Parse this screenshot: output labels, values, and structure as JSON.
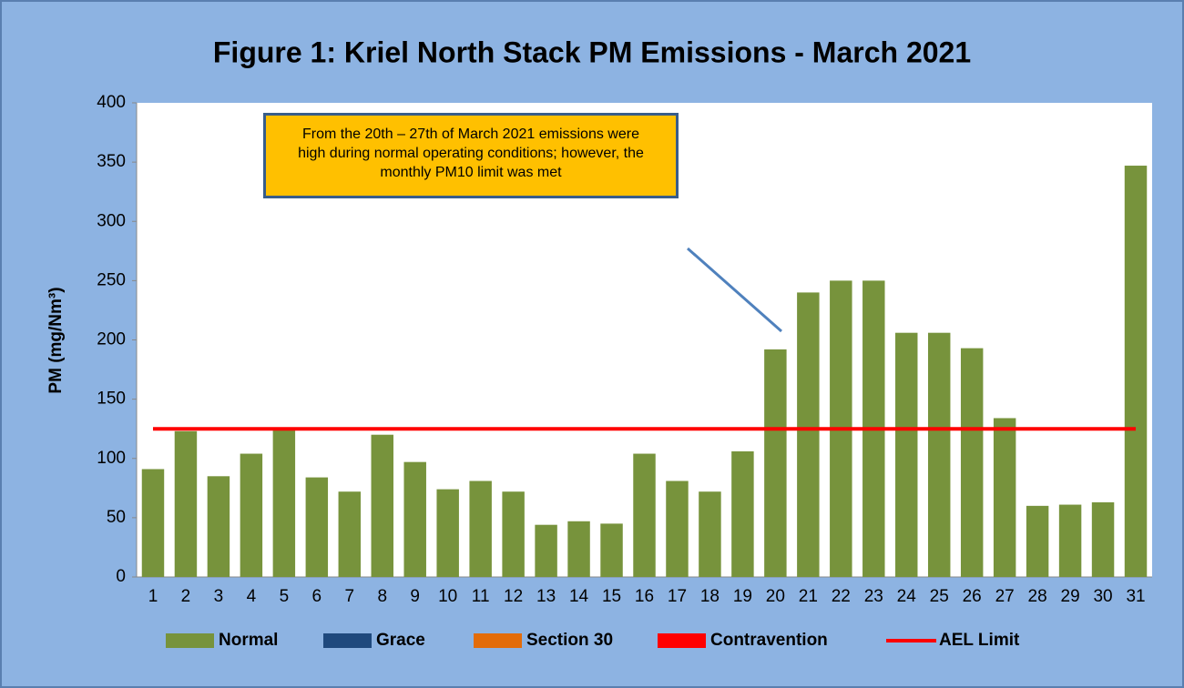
{
  "chart_data": {
    "type": "bar",
    "stacked": true,
    "title": "Figure 1: Kriel North Stack PM Emissions -  March 2021",
    "y_label": "PM (mg/Nm³)",
    "annotation": "From the 20th – 27th of March 2021 emissions were high during normal operating conditions; however, the monthly PM10 limit was met",
    "categories": [
      "1",
      "2",
      "3",
      "4",
      "5",
      "6",
      "7",
      "8",
      "9",
      "10",
      "11",
      "12",
      "13",
      "14",
      "15",
      "16",
      "17",
      "18",
      "19",
      "20",
      "21",
      "22",
      "23",
      "24",
      "25",
      "26",
      "27",
      "28",
      "29",
      "30",
      "31"
    ],
    "series": [
      {
        "name": "Normal",
        "color": "#77933c",
        "values": [
          91,
          123,
          85,
          104,
          125,
          84,
          72,
          120,
          97,
          74,
          81,
          72,
          44,
          47,
          45,
          104,
          81,
          72,
          106,
          192,
          240,
          250,
          250,
          206,
          206,
          193,
          134,
          60,
          61,
          63,
          347
        ]
      },
      {
        "name": "Grace",
        "color": "#1f497d",
        "values": [
          0,
          0,
          0,
          0,
          0,
          0,
          0,
          0,
          0,
          0,
          0,
          0,
          0,
          0,
          0,
          0,
          0,
          0,
          0,
          0,
          0,
          0,
          0,
          0,
          0,
          0,
          0,
          0,
          0,
          0,
          0
        ]
      },
      {
        "name": "Section 30",
        "color": "#e36c09",
        "values": [
          0,
          0,
          0,
          0,
          0,
          0,
          0,
          0,
          0,
          0,
          0,
          0,
          0,
          0,
          0,
          0,
          0,
          0,
          0,
          0,
          0,
          0,
          0,
          0,
          0,
          0,
          0,
          0,
          0,
          0,
          0
        ]
      },
      {
        "name": "Contravention",
        "color": "#ff0000",
        "values": [
          0,
          0,
          0,
          0,
          0,
          0,
          0,
          0,
          0,
          0,
          0,
          0,
          0,
          0,
          0,
          0,
          0,
          0,
          0,
          0,
          0,
          0,
          0,
          0,
          0,
          0,
          0,
          0,
          0,
          0,
          0
        ]
      },
      {
        "name": "AEL Limit",
        "type": "line",
        "color": "#ff0000",
        "values": [
          125,
          125,
          125,
          125,
          125,
          125,
          125,
          125,
          125,
          125,
          125,
          125,
          125,
          125,
          125,
          125,
          125,
          125,
          125,
          125,
          125,
          125,
          125,
          125,
          125,
          125,
          125,
          125,
          125,
          125,
          125
        ]
      }
    ],
    "ylim": [
      0,
      400
    ],
    "yticks": [
      0,
      50,
      100,
      150,
      200,
      250,
      300,
      350,
      400
    ],
    "grid": false,
    "legend": "bottom"
  }
}
